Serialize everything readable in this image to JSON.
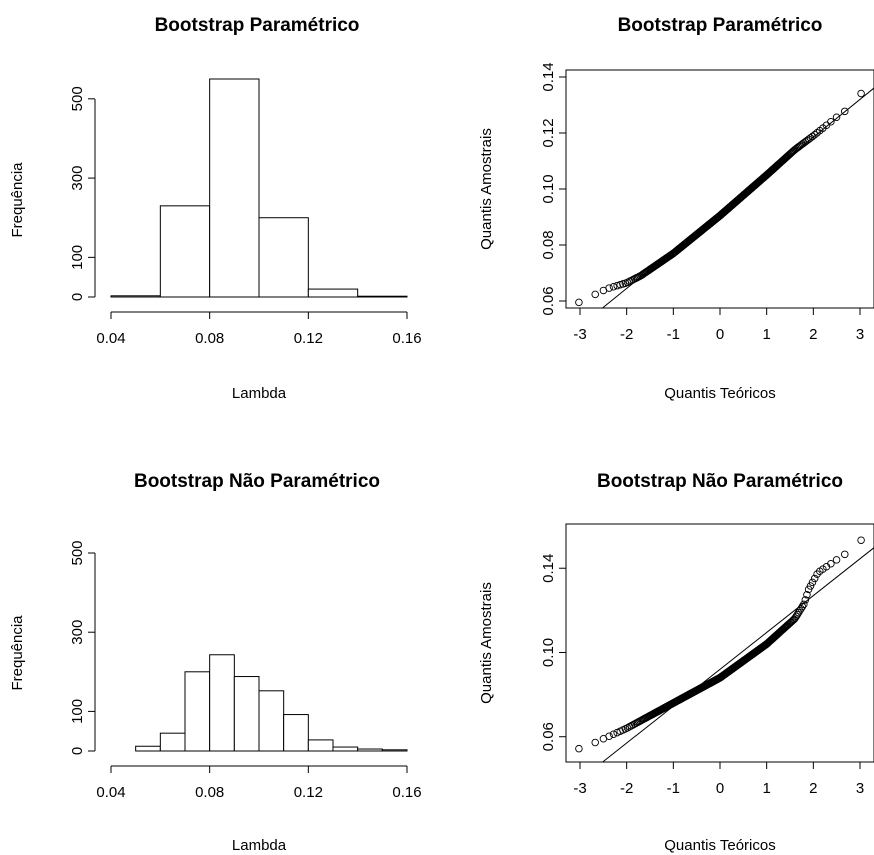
{
  "chart_data": [
    {
      "type": "bar",
      "title": "Bootstrap Paramétrico",
      "xlabel": "Lambda",
      "ylabel": "Frequência",
      "bin_edges": [
        0.04,
        0.06,
        0.08,
        0.1,
        0.12,
        0.14,
        0.16
      ],
      "values": [
        3,
        230,
        550,
        200,
        20,
        2
      ],
      "xlim": [
        0.04,
        0.16
      ],
      "ylim": [
        0,
        550
      ],
      "xticks": [
        "0.04",
        "0.08",
        "0.12",
        "0.16"
      ],
      "yticks": [
        "0",
        "100",
        "300",
        "500"
      ],
      "ytick_values": [
        0,
        100,
        300,
        500
      ]
    },
    {
      "type": "scatter",
      "title": "Bootstrap Paramétrico",
      "xlabel": "Quantis Teóricos",
      "ylabel": "Quantis Amostrais",
      "xlim": [
        -3.3,
        3.3
      ],
      "ylim": [
        0.0575,
        0.1425
      ],
      "xticks": [
        "-3",
        "-2",
        "-1",
        "0",
        "1",
        "2",
        "3"
      ],
      "xtick_values": [
        -3,
        -2,
        -1,
        0,
        1,
        2,
        3
      ],
      "yticks": [
        "0.06",
        "0.08",
        "0.10",
        "0.12",
        "0.14"
      ],
      "ytick_values": [
        0.06,
        0.08,
        0.1,
        0.12,
        0.14
      ],
      "reference_line": {
        "intercept": 0.0915,
        "slope": 0.0135
      },
      "qq_curve": {
        "x": [
          -3.0,
          -2.6,
          -2.4,
          -2.0,
          -1.7,
          -1.0,
          0.0,
          1.0,
          1.6,
          2.0,
          2.3,
          2.6,
          2.9,
          3.2
        ],
        "y": [
          0.0595,
          0.063,
          0.0645,
          0.0665,
          0.069,
          0.077,
          0.0905,
          0.105,
          0.114,
          0.119,
          0.123,
          0.127,
          0.13,
          0.14
        ]
      },
      "grid": false
    },
    {
      "type": "bar",
      "title": "Bootstrap Não Paramétrico",
      "xlabel": "Lambda",
      "ylabel": "Frequência",
      "bin_edges": [
        0.05,
        0.06,
        0.07,
        0.08,
        0.09,
        0.1,
        0.11,
        0.12,
        0.13,
        0.14,
        0.15,
        0.16
      ],
      "values": [
        12,
        45,
        200,
        243,
        188,
        152,
        92,
        28,
        10,
        5,
        3
      ],
      "xlim": [
        0.04,
        0.16
      ],
      "ylim": [
        0,
        500
      ],
      "xticks": [
        "0.04",
        "0.08",
        "0.12",
        "0.16"
      ],
      "yticks": [
        "0",
        "100",
        "300",
        "500"
      ],
      "ytick_values": [
        0,
        100,
        300,
        500
      ]
    },
    {
      "type": "scatter",
      "title": "Bootstrap Não Paramétrico",
      "xlabel": "Quantis Teóricos",
      "ylabel": "Quantis Amostrais",
      "xlim": [
        -3.3,
        3.3
      ],
      "ylim": [
        0.048,
        0.161
      ],
      "xticks": [
        "-3",
        "-2",
        "-1",
        "0",
        "1",
        "2",
        "3"
      ],
      "xtick_values": [
        -3,
        -2,
        -1,
        0,
        1,
        2,
        3
      ],
      "yticks": [
        "0.06",
        "0.10",
        "0.14"
      ],
      "ytick_values": [
        0.06,
        0.1,
        0.14
      ],
      "reference_line": {
        "intercept": 0.092,
        "slope": 0.0175
      },
      "qq_curve": {
        "x": [
          -3.2,
          -2.8,
          -2.5,
          -2.0,
          -1.5,
          -1.0,
          0.0,
          1.0,
          1.6,
          1.8,
          1.9,
          2.1,
          2.5,
          2.7,
          3.0,
          3.3
        ],
        "y": [
          0.053,
          0.056,
          0.059,
          0.064,
          0.07,
          0.076,
          0.088,
          0.104,
          0.116,
          0.123,
          0.13,
          0.138,
          0.144,
          0.147,
          0.153,
          0.157
        ]
      },
      "grid": false
    }
  ]
}
